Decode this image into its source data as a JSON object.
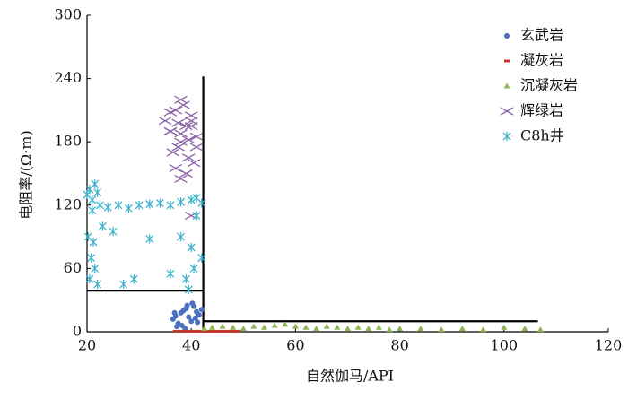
{
  "chart_data": {
    "type": "scatter",
    "x_label": "自然伽马/API",
    "y_label": "电阻率/(Ω·m)",
    "xlim": [
      20,
      120
    ],
    "xticks": [
      20,
      40,
      60,
      80,
      100,
      120
    ],
    "ylim": [
      0,
      300
    ],
    "yticks": [
      0,
      60,
      120,
      180,
      240,
      300
    ],
    "series": [
      {
        "name": "玄武岩",
        "color": "#4a72c0",
        "marker": "dot",
        "x": [
          36.5,
          37,
          37.5,
          38,
          38.5,
          39,
          39.5,
          40,
          40.5,
          41,
          41.5,
          37.2,
          38.2,
          39.2,
          40.2,
          41.2,
          36.8,
          38.8,
          40.8,
          42
        ],
        "values": [
          12,
          15,
          8,
          18,
          20,
          22,
          14,
          10,
          24,
          19,
          16,
          5,
          6,
          25,
          27,
          9,
          18,
          3,
          13,
          21
        ]
      },
      {
        "name": "凝灰岩",
        "color": "#c0392b",
        "marker": "square",
        "x": [
          37,
          38,
          39,
          40,
          41,
          42,
          43,
          44,
          45,
          46,
          47,
          48,
          49
        ],
        "values": [
          0.5,
          0.5,
          0.5,
          0.5,
          0.5,
          0.5,
          0.5,
          0.5,
          0.5,
          0.5,
          0.5,
          0.5,
          0.5
        ]
      },
      {
        "name": "沉凝灰岩",
        "color": "#8db552",
        "marker": "triangle",
        "x": [
          42.5,
          44,
          46,
          48,
          50,
          52,
          54,
          56,
          58,
          60,
          62,
          64,
          66,
          68,
          70,
          72,
          74,
          76,
          78,
          80,
          84,
          88,
          92,
          96,
          100,
          104,
          107
        ],
        "values": [
          3,
          4,
          5,
          4,
          3,
          5,
          4,
          6,
          7,
          5,
          4,
          3,
          5,
          4,
          3,
          4,
          3,
          4,
          2,
          3,
          3,
          2,
          3,
          2,
          4,
          3,
          2
        ]
      },
      {
        "name": "辉绿岩",
        "color": "#8b63a8",
        "marker": "x",
        "x": [
          35,
          36,
          37,
          38,
          39,
          40,
          41,
          36.5,
          37.5,
          38.5,
          39.5,
          40.5,
          36,
          38,
          40,
          39,
          37,
          41,
          38,
          40,
          38,
          37.5,
          39.5,
          36,
          40
        ],
        "values": [
          200,
          190,
          210,
          180,
          195,
          205,
          185,
          170,
          175,
          215,
          165,
          160,
          190,
          220,
          200,
          150,
          155,
          175,
          145,
          110,
          188,
          198,
          182,
          208,
          195
        ]
      },
      {
        "name": "C8h井",
        "color": "#3fb3cc",
        "marker": "asterisk",
        "x": [
          20,
          20.5,
          21,
          21.5,
          22,
          20.2,
          21.2,
          22.5,
          24,
          26,
          28,
          30,
          32,
          34,
          36,
          38,
          40,
          41,
          42,
          20.8,
          21.5,
          23,
          25,
          27,
          29,
          32,
          36,
          38,
          39,
          40,
          41,
          42,
          40.5,
          39.5,
          21,
          22,
          20.5
        ],
        "values": [
          130,
          135,
          125,
          140,
          132,
          90,
          85,
          120,
          118,
          120,
          117,
          120,
          121,
          122,
          120,
          123,
          125,
          127,
          122,
          70,
          60,
          100,
          95,
          45,
          50,
          88,
          55,
          90,
          50,
          80,
          110,
          70,
          60,
          40,
          115,
          45,
          50
        ]
      }
    ],
    "lines": [
      {
        "x": [
          20,
          42.3
        ],
        "values": [
          39,
          39
        ]
      },
      {
        "x": [
          42.3,
          42.3
        ],
        "values": [
          0,
          242
        ]
      },
      {
        "x": [
          42.3,
          106.5
        ],
        "values": [
          10,
          10
        ]
      }
    ]
  }
}
